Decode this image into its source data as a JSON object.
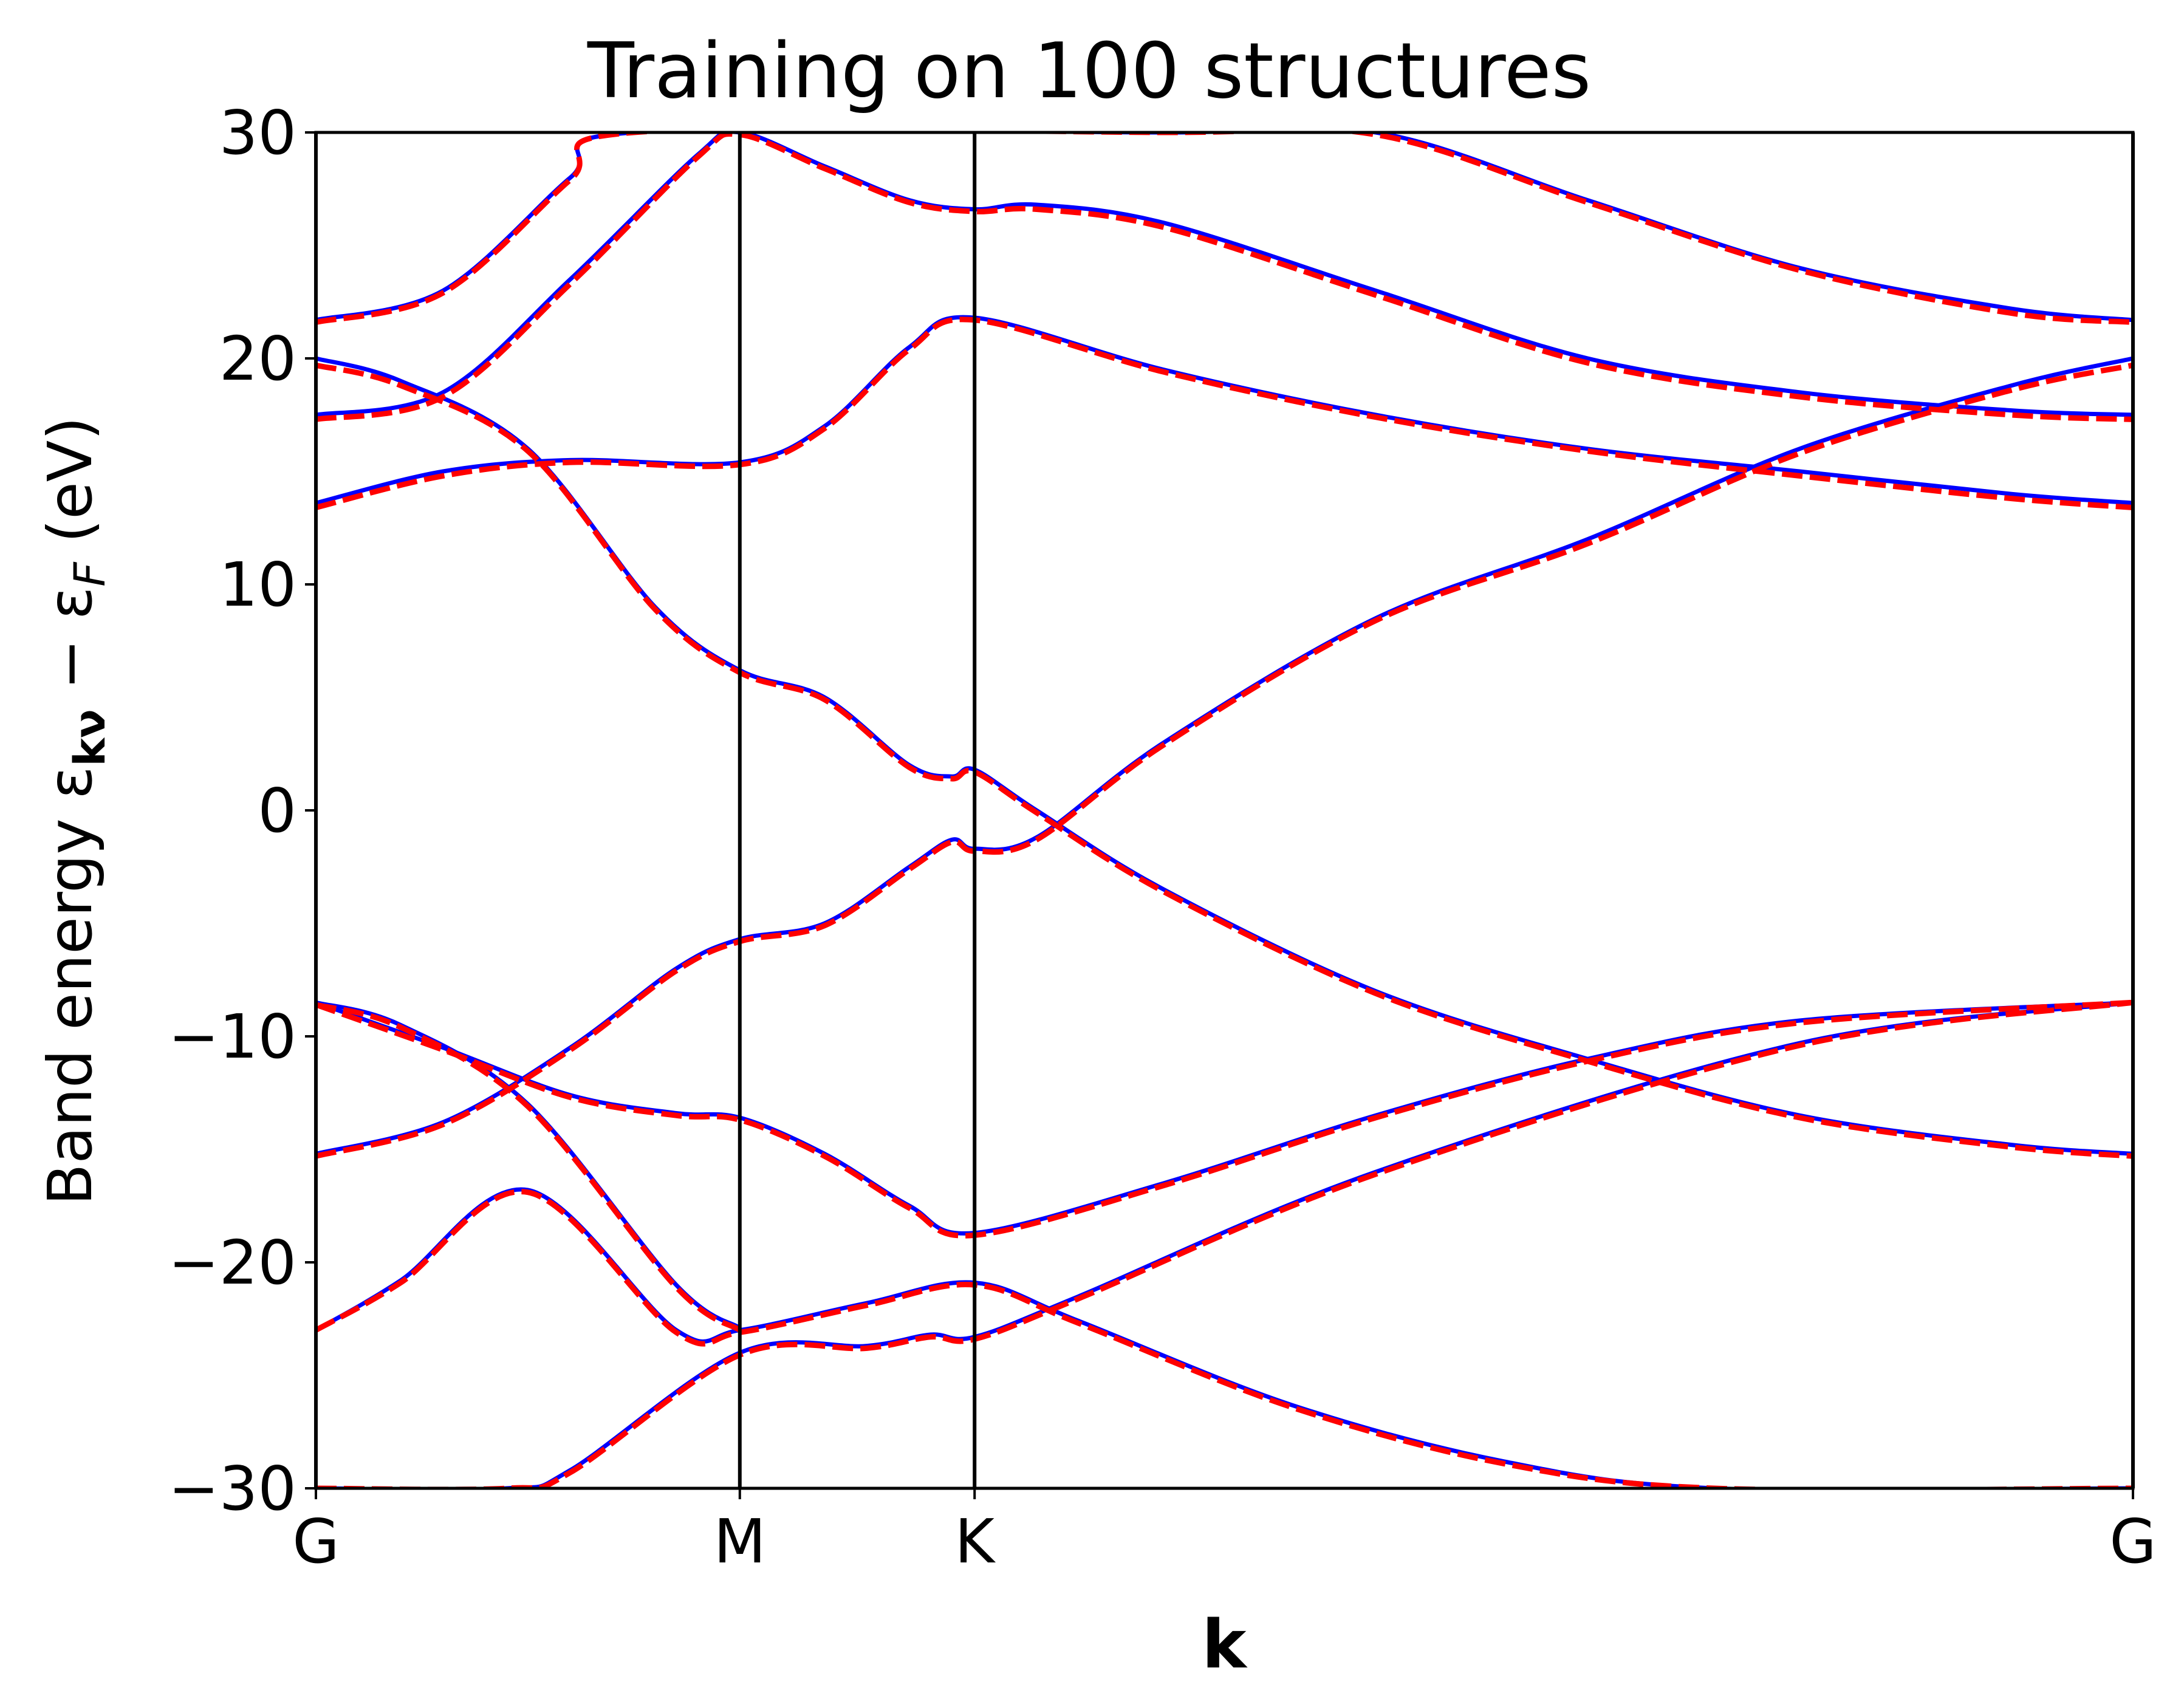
{
  "chart_data": {
    "type": "line",
    "title": "Training on 100 structures",
    "xlabel": "k",
    "ylabel": "Band energy ε_kν − ε_F (eV)",
    "ylabel_parts": {
      "pre": "Band energy ε",
      "sub1": "kν",
      "mid": " − ε",
      "sub2": "F",
      "post": " (eV)"
    },
    "ylim": [
      -30,
      30
    ],
    "yticks": [
      -30,
      -20,
      -10,
      0,
      10,
      20,
      30
    ],
    "ytick_labels": [
      "−30",
      "−20",
      "−10",
      "0",
      "10",
      "20",
      "30"
    ],
    "xticks": [
      0,
      1,
      1.5538,
      4.2864
    ],
    "xtick_labels": [
      "G",
      "M",
      "K",
      "G"
    ],
    "xlim": [
      0,
      4.2864
    ],
    "grid": false,
    "legend": null,
    "colors": {
      "reference": "#0000ff",
      "model": "#ff0000",
      "path_line": "#000000"
    },
    "style": {
      "reference": "solid",
      "model": "dashed"
    },
    "bands_reference": [
      [
        [
          0,
          -30
        ],
        [
          0.45,
          -30
        ],
        [
          0.6,
          -29.2
        ],
        [
          1.0,
          -24.0
        ],
        [
          1.3,
          -23.7
        ],
        [
          1.45,
          -23.2
        ],
        [
          1.5538,
          -23.3
        ],
        [
          1.8,
          -21.5
        ],
        [
          2.5,
          -16.0
        ],
        [
          3.5,
          -10.3
        ],
        [
          4.2864,
          -8.5
        ]
      ],
      [
        [
          0,
          -23.0
        ],
        [
          0.2,
          -20.8
        ],
        [
          0.5,
          -16.8
        ],
        [
          0.85,
          -23.0
        ],
        [
          1.0,
          -23.0
        ],
        [
          1.3,
          -21.8
        ],
        [
          1.5538,
          -20.9
        ],
        [
          1.8,
          -22.6
        ],
        [
          2.3,
          -26.3
        ],
        [
          2.8,
          -28.8
        ],
        [
          3.3,
          -30.0
        ],
        [
          4.2864,
          -30.0
        ]
      ],
      [
        [
          0,
          -8.5
        ],
        [
          0.2,
          -9.5
        ],
        [
          0.5,
          -13.0
        ],
        [
          0.85,
          -21.0
        ],
        [
          1.0,
          -22.9
        ]
      ],
      [
        [
          0,
          -8.5
        ],
        [
          0.3,
          -10.5
        ],
        [
          0.6,
          -12.6
        ],
        [
          0.85,
          -13.4
        ],
        [
          1.0,
          -13.6
        ],
        [
          1.2,
          -15.2
        ],
        [
          1.4,
          -17.5
        ],
        [
          1.5538,
          -18.7
        ],
        [
          2.0,
          -16.5
        ],
        [
          2.5,
          -13.5
        ],
        [
          3.0,
          -11.0
        ],
        [
          3.5,
          -9.3
        ],
        [
          4.2864,
          -8.5
        ]
      ],
      [
        [
          0,
          -15.2
        ],
        [
          0.3,
          -13.8
        ],
        [
          0.6,
          -10.5
        ],
        [
          0.85,
          -7.0
        ],
        [
          1.0,
          -5.7
        ],
        [
          1.2,
          -5.0
        ],
        [
          1.4,
          -2.5
        ],
        [
          1.5,
          -1.3
        ],
        [
          1.5538,
          -1.7
        ],
        [
          1.7,
          -1.2
        ],
        [
          2.0,
          3.0
        ],
        [
          2.5,
          8.5
        ],
        [
          3.0,
          12.0
        ],
        [
          3.5,
          16.0
        ],
        [
          4.0,
          18.8
        ],
        [
          4.2864,
          20.0
        ]
      ],
      [
        [
          0,
          20.0
        ],
        [
          0.2,
          19.0
        ],
        [
          0.5,
          16.0
        ],
        [
          0.8,
          9.0
        ],
        [
          1.0,
          6.2
        ],
        [
          1.2,
          5.0
        ],
        [
          1.4,
          2.0
        ],
        [
          1.5,
          1.5
        ],
        [
          1.5538,
          1.8
        ],
        [
          1.7,
          0.0
        ],
        [
          2.0,
          -3.5
        ],
        [
          2.5,
          -8.0
        ],
        [
          3.0,
          -11.0
        ],
        [
          3.5,
          -13.5
        ],
        [
          4.0,
          -14.8
        ],
        [
          4.2864,
          -15.2
        ]
      ],
      [
        [
          0,
          13.6
        ],
        [
          0.3,
          15.0
        ],
        [
          0.6,
          15.5
        ],
        [
          1.0,
          15.4
        ],
        [
          1.2,
          17.0
        ],
        [
          1.4,
          20.5
        ],
        [
          1.5538,
          21.8
        ],
        [
          2.0,
          19.5
        ],
        [
          2.5,
          17.5
        ],
        [
          3.0,
          16.0
        ],
        [
          3.5,
          15.0
        ],
        [
          4.0,
          14.0
        ],
        [
          4.2864,
          13.6
        ]
      ],
      [
        [
          0,
          17.5
        ],
        [
          0.3,
          18.5
        ],
        [
          0.6,
          23.5
        ],
        [
          0.9,
          29.0
        ],
        [
          1.0,
          30.0
        ],
        [
          1.2,
          28.5
        ],
        [
          1.4,
          27.0
        ],
        [
          1.5538,
          26.6
        ],
        [
          1.7,
          26.8
        ],
        [
          2.0,
          26.0
        ],
        [
          2.5,
          23.0
        ],
        [
          3.0,
          20.0
        ],
        [
          3.5,
          18.5
        ],
        [
          4.0,
          17.7
        ],
        [
          4.2864,
          17.5
        ]
      ],
      [
        [
          0,
          21.7
        ],
        [
          0.3,
          23.0
        ],
        [
          0.6,
          28.0
        ],
        [
          0.75,
          30.0
        ],
        [
          2.0,
          30.0
        ],
        [
          2.5,
          30.0
        ],
        [
          3.0,
          27.0
        ],
        [
          3.5,
          24.0
        ],
        [
          4.0,
          22.2
        ],
        [
          4.2864,
          21.7
        ]
      ]
    ],
    "bands_model": [
      [
        [
          0,
          -30
        ],
        [
          0.45,
          -30
        ],
        [
          0.6,
          -29.3
        ],
        [
          1.0,
          -24.1
        ],
        [
          1.3,
          -23.8
        ],
        [
          1.45,
          -23.3
        ],
        [
          1.5538,
          -23.4
        ],
        [
          1.8,
          -21.6
        ],
        [
          2.5,
          -16.1
        ],
        [
          3.5,
          -10.4
        ],
        [
          4.2864,
          -8.5
        ]
      ],
      [
        [
          0,
          -23.0
        ],
        [
          0.2,
          -20.9
        ],
        [
          0.5,
          -16.9
        ],
        [
          0.85,
          -23.1
        ],
        [
          1.0,
          -23.1
        ],
        [
          1.3,
          -21.9
        ],
        [
          1.5538,
          -21.0
        ],
        [
          1.8,
          -22.7
        ],
        [
          2.3,
          -26.4
        ],
        [
          2.8,
          -28.9
        ],
        [
          3.3,
          -30.0
        ],
        [
          4.2864,
          -30.0
        ]
      ],
      [
        [
          0,
          -8.6
        ],
        [
          0.2,
          -9.6
        ],
        [
          0.5,
          -13.1
        ],
        [
          0.85,
          -21.1
        ],
        [
          1.0,
          -23.0
        ]
      ],
      [
        [
          0,
          -8.6
        ],
        [
          0.3,
          -10.6
        ],
        [
          0.6,
          -12.7
        ],
        [
          0.85,
          -13.5
        ],
        [
          1.0,
          -13.7
        ],
        [
          1.2,
          -15.3
        ],
        [
          1.4,
          -17.6
        ],
        [
          1.5538,
          -18.8
        ],
        [
          2.0,
          -16.6
        ],
        [
          2.5,
          -13.6
        ],
        [
          3.0,
          -11.1
        ],
        [
          3.5,
          -9.4
        ],
        [
          4.2864,
          -8.5
        ]
      ],
      [
        [
          0,
          -15.3
        ],
        [
          0.3,
          -13.9
        ],
        [
          0.6,
          -10.6
        ],
        [
          0.85,
          -7.1
        ],
        [
          1.0,
          -5.8
        ],
        [
          1.2,
          -5.1
        ],
        [
          1.4,
          -2.6
        ],
        [
          1.5,
          -1.4
        ],
        [
          1.5538,
          -1.8
        ],
        [
          1.7,
          -1.3
        ],
        [
          2.0,
          2.9
        ],
        [
          2.5,
          8.4
        ],
        [
          3.0,
          11.8
        ],
        [
          3.5,
          15.8
        ],
        [
          4.0,
          18.6
        ],
        [
          4.2864,
          19.7
        ]
      ],
      [
        [
          0,
          19.7
        ],
        [
          0.2,
          18.8
        ],
        [
          0.5,
          15.9
        ],
        [
          0.8,
          8.9
        ],
        [
          1.0,
          6.1
        ],
        [
          1.2,
          4.9
        ],
        [
          1.4,
          1.9
        ],
        [
          1.5,
          1.4
        ],
        [
          1.5538,
          1.7
        ],
        [
          1.7,
          -0.1
        ],
        [
          2.0,
          -3.6
        ],
        [
          2.5,
          -8.1
        ],
        [
          3.0,
          -11.1
        ],
        [
          3.5,
          -13.6
        ],
        [
          4.0,
          -14.9
        ],
        [
          4.2864,
          -15.3
        ]
      ],
      [
        [
          0,
          13.4
        ],
        [
          0.3,
          14.8
        ],
        [
          0.6,
          15.4
        ],
        [
          1.0,
          15.3
        ],
        [
          1.2,
          16.9
        ],
        [
          1.4,
          20.4
        ],
        [
          1.5538,
          21.7
        ],
        [
          2.0,
          19.4
        ],
        [
          2.5,
          17.4
        ],
        [
          3.0,
          15.9
        ],
        [
          3.5,
          14.8
        ],
        [
          4.0,
          13.8
        ],
        [
          4.2864,
          13.4
        ]
      ],
      [
        [
          0,
          17.3
        ],
        [
          0.3,
          18.3
        ],
        [
          0.6,
          23.3
        ],
        [
          0.9,
          28.9
        ],
        [
          1.0,
          29.9
        ],
        [
          1.2,
          28.4
        ],
        [
          1.4,
          26.9
        ],
        [
          1.5538,
          26.5
        ],
        [
          1.7,
          26.6
        ],
        [
          2.0,
          25.8
        ],
        [
          2.5,
          22.8
        ],
        [
          3.0,
          19.8
        ],
        [
          3.5,
          18.3
        ],
        [
          4.0,
          17.5
        ],
        [
          4.2864,
          17.3
        ]
      ],
      [
        [
          0,
          21.6
        ],
        [
          0.3,
          22.9
        ],
        [
          0.6,
          27.9
        ],
        [
          0.75,
          30.0
        ],
        [
          2.0,
          30.0
        ],
        [
          2.5,
          29.9
        ],
        [
          3.0,
          26.9
        ],
        [
          3.5,
          23.9
        ],
        [
          4.0,
          22.0
        ],
        [
          4.2864,
          21.6
        ]
      ]
    ]
  }
}
